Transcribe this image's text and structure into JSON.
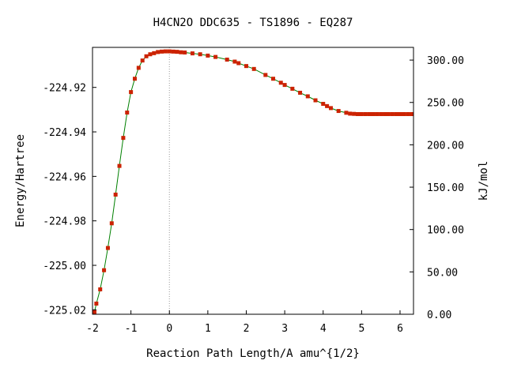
{
  "chart_data": {
    "type": "line",
    "title": "H4CN2O   DDC635 - TS1896 - EQ287",
    "xlabel": "Reaction Path Length/A amu^{1/2}",
    "ylabel": "Energy/Hartree",
    "y2label": "kJ/mol",
    "xlim": [
      -2.0,
      6.35
    ],
    "ylim": [
      -225.022,
      -224.902
    ],
    "y2lim": [
      0.0,
      315.0
    ],
    "xticks": [
      -2,
      -1,
      0,
      1,
      2,
      3,
      4,
      5,
      6
    ],
    "xtick_labels": [
      "-2",
      "-1",
      "0",
      "1",
      "2",
      "3",
      "4",
      "5",
      "6"
    ],
    "yticks": [
      -225.02,
      -225.0,
      -224.98,
      -224.96,
      -224.94,
      -224.92
    ],
    "ytick_labels": [
      "-225.02",
      "-225.00",
      "-224.98",
      "-224.96",
      "-224.94",
      "-224.92"
    ],
    "y2ticks": [
      0,
      50,
      100,
      150,
      200,
      250,
      300
    ],
    "y2tick_labels": [
      "0.00",
      "50.00",
      "100.00",
      "150.00",
      "200.00",
      "250.00",
      "300.00"
    ],
    "ts_marker_x": 0,
    "colors": {
      "line": "#008000",
      "marker": "#cc2200",
      "ts_line": "#999999"
    },
    "series": [
      {
        "x": [
          -1.95,
          -1.9,
          -1.8,
          -1.7,
          -1.6,
          -1.5,
          -1.4,
          -1.3,
          -1.2,
          -1.1,
          -1.0,
          -0.9,
          -0.8,
          -0.7,
          -0.6,
          -0.5,
          -0.4,
          -0.3,
          -0.2,
          -0.1,
          0.0,
          0.1,
          0.2,
          0.3,
          0.4,
          0.6,
          0.8,
          1.0,
          1.2,
          1.5,
          1.7,
          1.8,
          2.0,
          2.2,
          2.5,
          2.7,
          2.9,
          3.0,
          3.2,
          3.4,
          3.6,
          3.8,
          4.0,
          4.1,
          4.2,
          4.4,
          4.6,
          4.7,
          4.8,
          4.9,
          5.0,
          5.1,
          5.2,
          5.3,
          5.4,
          5.5,
          5.6,
          5.7,
          5.8,
          5.9,
          6.0,
          6.1,
          6.2,
          6.3
        ],
        "y": [
          -225.021,
          -225.0172,
          -225.0108,
          -225.0022,
          -224.9922,
          -224.9811,
          -224.9682,
          -224.9553,
          -224.9427,
          -224.9313,
          -224.9221,
          -224.9161,
          -224.9112,
          -224.9079,
          -224.906,
          -224.9051,
          -224.9046,
          -224.9041,
          -224.9039,
          -224.9038,
          -224.9038,
          -224.9039,
          -224.904,
          -224.9042,
          -224.9043,
          -224.9047,
          -224.9051,
          -224.9057,
          -224.9063,
          -224.9075,
          -224.9084,
          -224.9091,
          -224.9104,
          -224.9117,
          -224.9144,
          -224.9161,
          -224.9179,
          -224.9189,
          -224.9206,
          -224.9224,
          -224.924,
          -224.9258,
          -224.9274,
          -224.9284,
          -224.9293,
          -224.9306,
          -224.9314,
          -224.9318,
          -224.9319,
          -224.932,
          -224.932,
          -224.932,
          -224.932,
          -224.932,
          -224.932,
          -224.932,
          -224.932,
          -224.932,
          -224.932,
          -224.932,
          -224.932,
          -224.932,
          -224.932,
          -224.932
        ]
      }
    ]
  }
}
